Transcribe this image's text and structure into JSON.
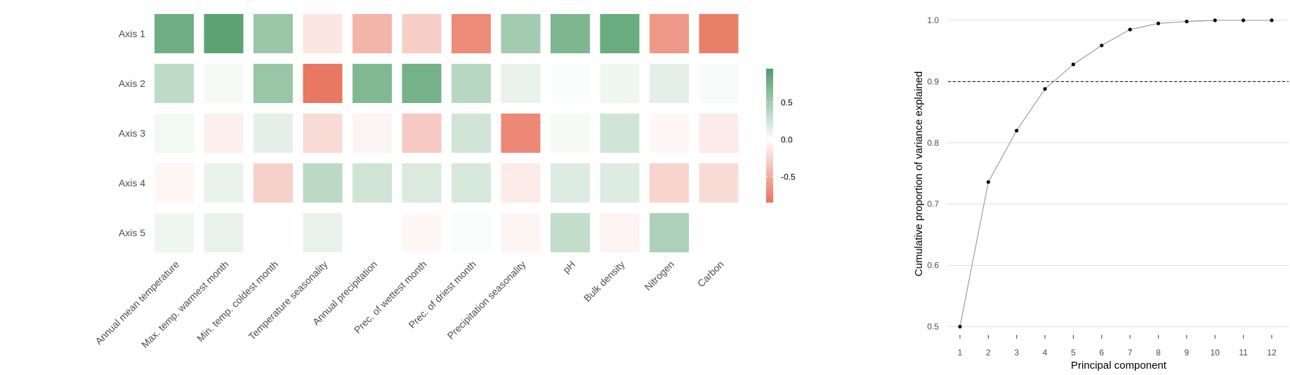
{
  "chart_data": [
    {
      "type": "heatmap",
      "title": "",
      "rows": [
        "Axis 1",
        "Axis 2",
        "Axis 3",
        "Axis 4",
        "Axis 5"
      ],
      "columns": [
        "Annual mean temperature",
        "Max. temp. warmest month",
        "Min. temp. coldest month",
        "Temperature seasonality",
        "Annual precipitation",
        "Prec. of wettest month",
        "Prec. of driest month",
        "Precipitation seasonality",
        "pH",
        "Bulk density",
        "Nitrogen",
        "Carbon"
      ],
      "values": [
        [
          0.78,
          0.88,
          0.55,
          -0.15,
          -0.45,
          -0.3,
          -0.7,
          0.5,
          0.7,
          0.8,
          -0.62,
          -0.78
        ],
        [
          0.35,
          0.05,
          0.55,
          -0.82,
          0.68,
          0.74,
          0.38,
          0.12,
          0.02,
          0.08,
          0.15,
          0.04
        ],
        [
          0.07,
          -0.1,
          0.14,
          -0.22,
          -0.06,
          -0.32,
          0.25,
          -0.72,
          0.05,
          0.25,
          -0.05,
          -0.12
        ],
        [
          -0.05,
          0.12,
          -0.28,
          0.36,
          0.26,
          0.2,
          0.22,
          -0.12,
          0.18,
          0.18,
          -0.26,
          -0.22
        ],
        [
          0.08,
          0.12,
          0.01,
          0.12,
          0.0,
          -0.05,
          0.03,
          -0.06,
          0.33,
          -0.07,
          0.44,
          0.01
        ]
      ],
      "color_scale": {
        "low_color": "#E8735C",
        "mid_color": "#FFFFFF",
        "high_color": "#4E9C67",
        "range": [
          -0.85,
          0.95
        ],
        "legend_ticks": [
          "0.5",
          "0.0",
          "-0.5"
        ],
        "legend_tick_values": [
          0.5,
          0.0,
          -0.5
        ],
        "legend_placement": "right"
      }
    },
    {
      "type": "line",
      "title": "",
      "xlabel": "Principal component",
      "ylabel": "Cumulative proportion of variance explained",
      "x": [
        1,
        2,
        3,
        4,
        5,
        6,
        7,
        8,
        9,
        10,
        11,
        12
      ],
      "y": [
        0.5,
        0.736,
        0.82,
        0.888,
        0.928,
        0.959,
        0.985,
        0.995,
        0.998,
        1.0,
        1.0,
        1.0
      ],
      "xticks": [
        "1",
        "2",
        "3",
        "4",
        "5",
        "6",
        "7",
        "8",
        "9",
        "10",
        "11",
        "12"
      ],
      "yticks": [
        "0.5",
        "0.6",
        "0.7",
        "0.8",
        "0.9",
        "1.0"
      ],
      "ytick_values": [
        0.5,
        0.6,
        0.7,
        0.8,
        0.9,
        1.0
      ],
      "ylim": [
        0.5,
        1.0
      ],
      "reference_line": 0.9,
      "grid": "horizontal",
      "line_color": "#8C8C8C",
      "point_color": "#000000"
    }
  ]
}
